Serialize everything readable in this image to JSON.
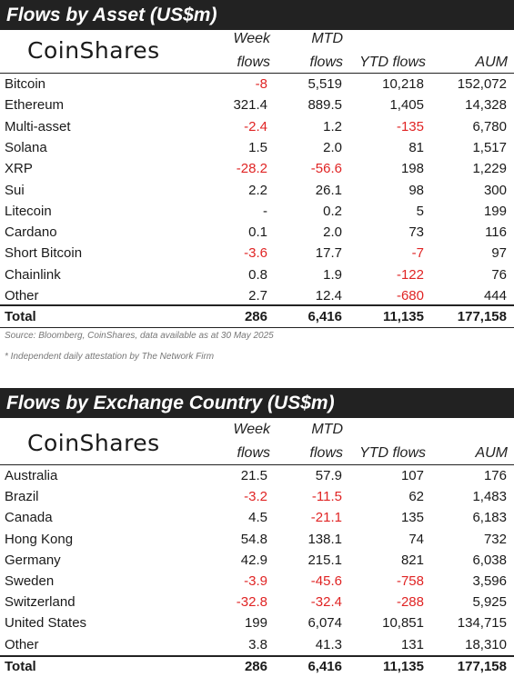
{
  "colors": {
    "header_bg": "#222222",
    "negative": "#e02424",
    "text": "#1a1a1a"
  },
  "asset_table": {
    "title": "Flows by Asset (US$m)",
    "logo": "CoinShares",
    "headers": {
      "week_1": "Week",
      "week_2": "flows",
      "mtd_1": "MTD",
      "mtd_2": "flows",
      "ytd": "YTD flows",
      "aum": "AUM"
    },
    "rows": [
      {
        "name": "Bitcoin",
        "week": "-8",
        "mtd": "5,519",
        "ytd": "10,218",
        "aum": "152,072"
      },
      {
        "name": "Ethereum",
        "week": "321.4",
        "mtd": "889.5",
        "ytd": "1,405",
        "aum": "14,328"
      },
      {
        "name": "Multi-asset",
        "week": "-2.4",
        "mtd": "1.2",
        "ytd": "-135",
        "aum": "6,780"
      },
      {
        "name": "Solana",
        "week": "1.5",
        "mtd": "2.0",
        "ytd": "81",
        "aum": "1,517"
      },
      {
        "name": "XRP",
        "week": "-28.2",
        "mtd": "-56.6",
        "ytd": "198",
        "aum": "1,229"
      },
      {
        "name": "Sui",
        "week": "2.2",
        "mtd": "26.1",
        "ytd": "98",
        "aum": "300"
      },
      {
        "name": "Litecoin",
        "week": "-",
        "mtd": "0.2",
        "ytd": "5",
        "aum": "199"
      },
      {
        "name": "Cardano",
        "week": "0.1",
        "mtd": "2.0",
        "ytd": "73",
        "aum": "116"
      },
      {
        "name": "Short Bitcoin",
        "week": "-3.6",
        "mtd": "17.7",
        "ytd": "-7",
        "aum": "97"
      },
      {
        "name": "Chainlink",
        "week": "0.8",
        "mtd": "1.9",
        "ytd": "-122",
        "aum": "76"
      },
      {
        "name": "Other",
        "week": "2.7",
        "mtd": "12.4",
        "ytd": "-680",
        "aum": "444"
      }
    ],
    "total": {
      "name": "Total",
      "week": "286",
      "mtd": "6,416",
      "ytd": "11,135",
      "aum": "177,158"
    },
    "source": "Source: Bloomberg, CoinShares, data available as at 30 May 2025",
    "footnote": "* Independent daily attestation by The Network Firm"
  },
  "country_table": {
    "title": "Flows by Exchange Country (US$m)",
    "logo": "CoinShares",
    "headers": {
      "week_1": "Week",
      "week_2": "flows",
      "mtd_1": "MTD",
      "mtd_2": "flows",
      "ytd": "YTD flows",
      "aum": "AUM"
    },
    "rows": [
      {
        "name": "Australia",
        "week": "21.5",
        "mtd": "57.9",
        "ytd": "107",
        "aum": "176"
      },
      {
        "name": "Brazil",
        "week": "-3.2",
        "mtd": "-11.5",
        "ytd": "62",
        "aum": "1,483"
      },
      {
        "name": "Canada",
        "week": "4.5",
        "mtd": "-21.1",
        "ytd": "135",
        "aum": "6,183"
      },
      {
        "name": "Hong Kong",
        "week": "54.8",
        "mtd": "138.1",
        "ytd": "74",
        "aum": "732"
      },
      {
        "name": "Germany",
        "week": "42.9",
        "mtd": "215.1",
        "ytd": "821",
        "aum": "6,038"
      },
      {
        "name": "Sweden",
        "week": "-3.9",
        "mtd": "-45.6",
        "ytd": "-758",
        "aum": "3,596"
      },
      {
        "name": "Switzerland",
        "week": "-32.8",
        "mtd": "-32.4",
        "ytd": "-288",
        "aum": "5,925"
      },
      {
        "name": "United States",
        "week": "199",
        "mtd": "6,074",
        "ytd": "10,851",
        "aum": "134,715"
      },
      {
        "name": "Other",
        "week": "3.8",
        "mtd": "41.3",
        "ytd": "131",
        "aum": "18,310"
      }
    ],
    "total": {
      "name": "Total",
      "week": "286",
      "mtd": "6,416",
      "ytd": "11,135",
      "aum": "177,158"
    }
  }
}
